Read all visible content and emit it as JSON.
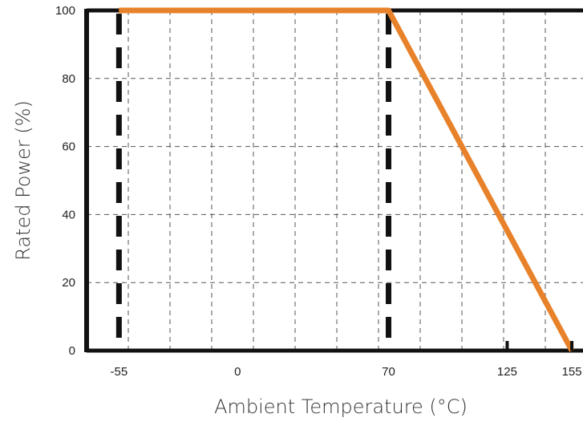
{
  "chart_data": {
    "type": "line",
    "title": "",
    "xlabel": "Ambient Temperature (°C)",
    "ylabel": "Rated Power (%)",
    "xlim": [
      -70,
      165
    ],
    "ylim": [
      0,
      100
    ],
    "x_ticks": [
      -55,
      0,
      70,
      125,
      155
    ],
    "y_ticks": [
      0,
      20,
      40,
      60,
      80,
      100
    ],
    "grid": true,
    "legend": "none",
    "series": [
      {
        "x": [
          -55,
          70,
          155
        ],
        "y": [
          100,
          100,
          0
        ],
        "color": "#e8822a"
      }
    ],
    "reference_lines": [
      {
        "x": -55,
        "style": "dashed",
        "color": "#111111"
      },
      {
        "x": 70,
        "style": "dashed",
        "color": "#111111"
      }
    ],
    "tick_marks": [
      125,
      155
    ]
  }
}
